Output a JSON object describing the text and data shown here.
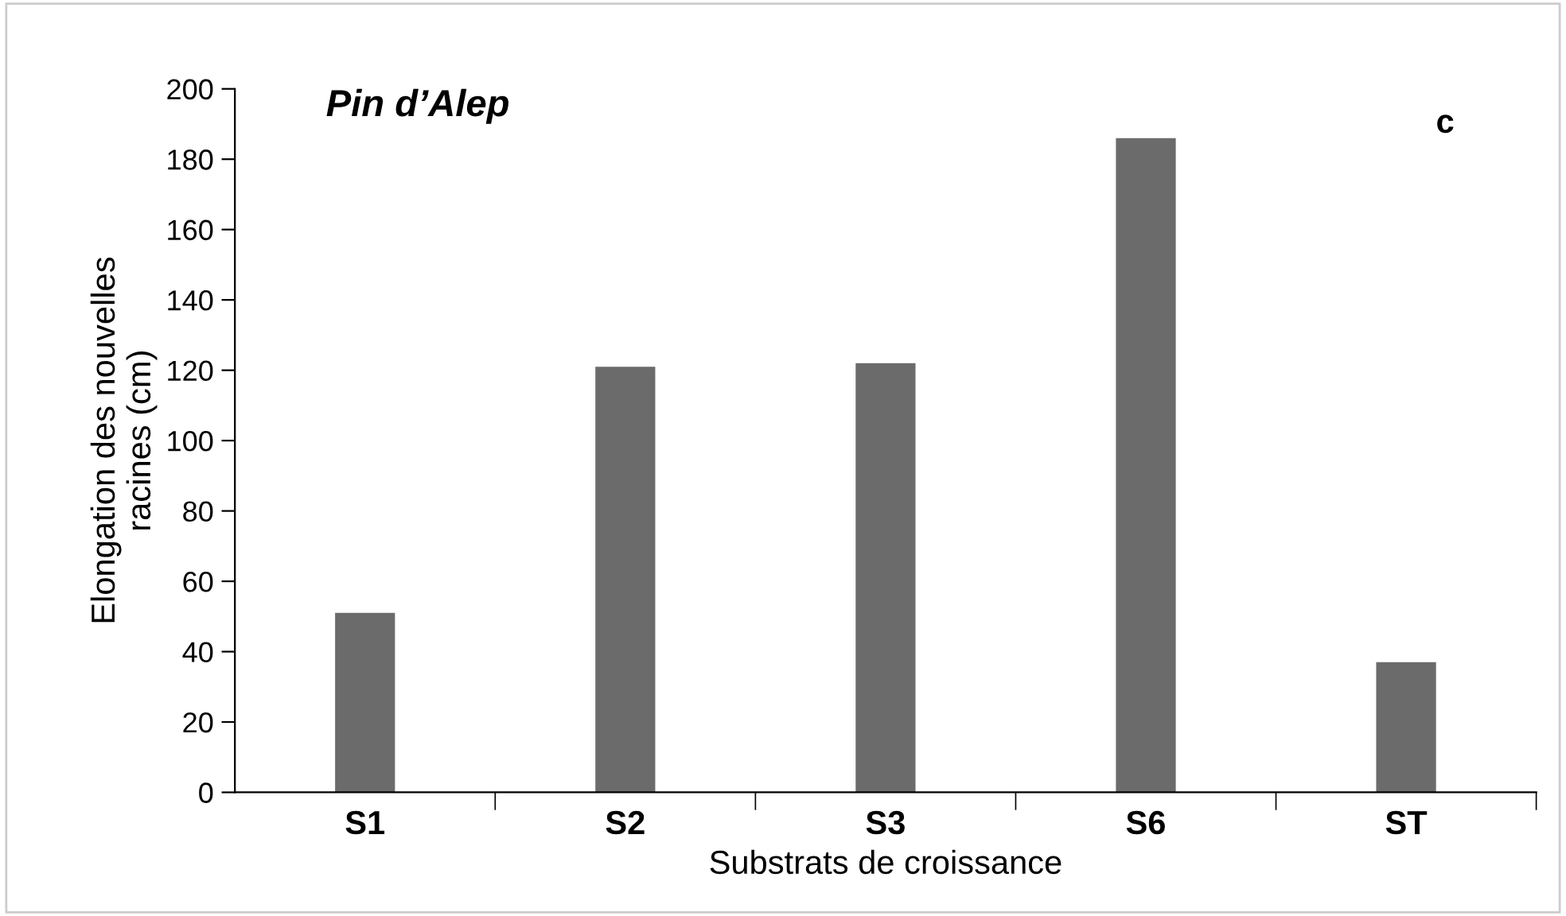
{
  "chart_data": {
    "type": "bar",
    "title": "Pin d’Alep",
    "xlabel": "Substrats de croissance",
    "ylabel": "Elongation des nouvelles\nracines (cm)",
    "categories": [
      "S1",
      "S2",
      "S3",
      "S6",
      "ST"
    ],
    "values": [
      51,
      121,
      122,
      186,
      37
    ],
    "color": "#6b6b6b",
    "ylim": [
      0,
      200
    ],
    "yticks": [
      0,
      20,
      40,
      60,
      80,
      100,
      120,
      140,
      160,
      180,
      200
    ],
    "grid": false,
    "legend": false,
    "annotations": [
      "c"
    ]
  }
}
